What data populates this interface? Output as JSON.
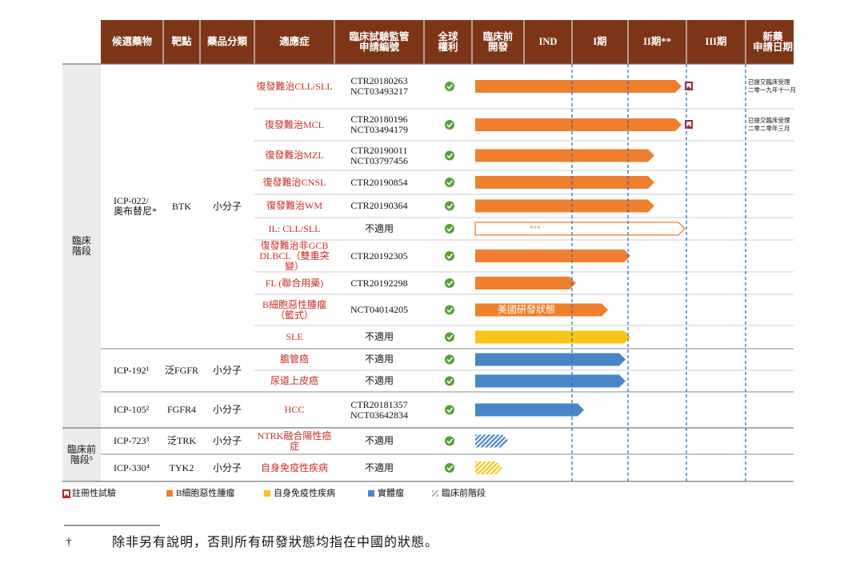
{
  "header": {
    "columns": [
      "候選藥物",
      "靶點",
      "藥品分類",
      "適應症",
      "臨床試驗監管\n申請編號",
      "全球\n權利",
      "臨床前\n開發",
      "IND",
      "I期",
      "II期**",
      "III期",
      "新藥\n申請日期"
    ]
  },
  "sections": [
    {
      "label": "臨床\n階段",
      "drugs": [
        {
          "name": "ICP-022/\n奧布替尼*",
          "target": "BTK",
          "class": "小分子",
          "indications": [
            {
              "name": "復發難治CLL/SLL",
              "trial": "CTR20180263\nNCT03493217",
              "nda": "已提交臨床受理\n二零一九年十一月"
            },
            {
              "name": "復發難治MCL",
              "trial": "CTR20180196\nNCT03494179",
              "nda": "已提交臨床受理\n二零二零年三月"
            },
            {
              "name": "復發難治MZL",
              "trial": "CTR20190011\nNCT03797456"
            },
            {
              "name": "復發難治CNSL",
              "trial": "CTR20190854"
            },
            {
              "name": "復發難治WM",
              "trial": "CTR20190364"
            },
            {
              "name": "IL: CLL/SLL",
              "trial": "不適用",
              "bar_label": "***"
            },
            {
              "name": "復發難治非GCB\nDLBCL（雙重突變）",
              "trial": "CTR20192305"
            },
            {
              "name": "FL (聯合用藥)",
              "trial": "CTR20192298"
            },
            {
              "name": "B細胞惡性腫瘤\n（籃式）",
              "trial": "NCT04014205",
              "bar_label": "美國研發狀態"
            },
            {
              "name": "SLE",
              "trial": "不適用"
            }
          ]
        },
        {
          "name": "ICP-192¹",
          "target": "泛FGFR",
          "class": "小分子",
          "indications": [
            {
              "name": "膽管癌",
              "trial": "不適用"
            },
            {
              "name": "尿道上皮癌",
              "trial": "不適用"
            }
          ]
        },
        {
          "name": "ICP-105²",
          "target": "FGFR4",
          "class": "小分子",
          "indications": [
            {
              "name": "HCC",
              "trial": "CTR20181357\nNCT03642834"
            }
          ]
        }
      ]
    },
    {
      "label": "臨床前\n階段⁵",
      "drugs": [
        {
          "name": "ICP-723³",
          "target": "泛TRK",
          "class": "小分子",
          "indications": [
            {
              "name": "NTRK融合陽性癌症",
              "trial": "不適用"
            }
          ]
        },
        {
          "name": "ICP-330⁴",
          "target": "TYK2",
          "class": "小分子",
          "indications": [
            {
              "name": "自身免疫性疾病",
              "trial": "不適用"
            }
          ]
        }
      ]
    }
  ],
  "legend": [
    "註冊性試驗",
    "B細胞惡性腫瘤",
    "自身免疫性疾病",
    "實體瘤",
    "臨床前階段"
  ],
  "footnote": {
    "mark": "†",
    "text": "除非另有說明，否則所有研發狀態均指在中國的狀態。"
  }
}
